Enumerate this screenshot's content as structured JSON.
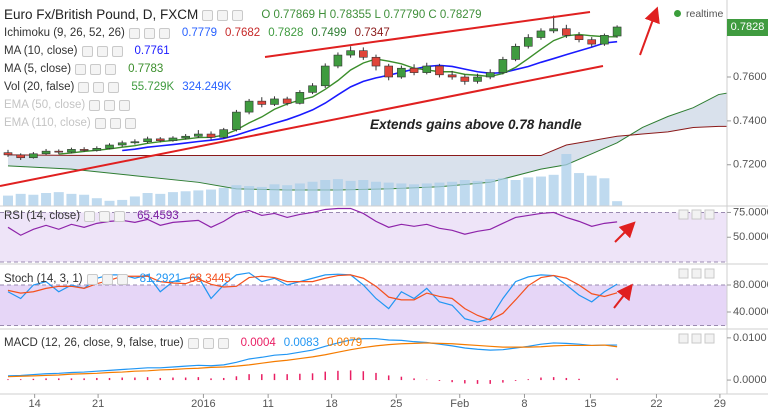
{
  "chart_data": [
    {
      "type": "candlestick",
      "title": "Euro Fx/British Pound, D, FXCM",
      "ohlc_legend": "O 0.77869 H 0.78355 L 0.77790 C 0.78279",
      "status": "realtime",
      "annotation": "Extends gains above 0.78 handle",
      "open": [
        0.7255,
        0.7245,
        0.7232,
        0.725,
        0.7262,
        0.7258,
        0.727,
        0.7265,
        0.7275,
        0.729,
        0.73,
        0.7305,
        0.7318,
        0.731,
        0.7322,
        0.733,
        0.734,
        0.7325,
        0.736,
        0.744,
        0.749,
        0.7475,
        0.75,
        0.748,
        0.753,
        0.756,
        0.765,
        0.77,
        0.772,
        0.769,
        0.765,
        0.76,
        0.764,
        0.762,
        0.765,
        0.761,
        0.76,
        0.758,
        0.76,
        0.762,
        0.768,
        0.774,
        0.778,
        0.781,
        0.782,
        0.779,
        0.777,
        0.775,
        0.77869
      ],
      "high": [
        0.7268,
        0.7252,
        0.7258,
        0.7272,
        0.727,
        0.7278,
        0.728,
        0.7284,
        0.7298,
        0.731,
        0.7316,
        0.7328,
        0.7326,
        0.733,
        0.734,
        0.7358,
        0.7352,
        0.7368,
        0.745,
        0.75,
        0.7508,
        0.7512,
        0.751,
        0.754,
        0.7572,
        0.7662,
        0.7712,
        0.774,
        0.7735,
        0.7702,
        0.766,
        0.7652,
        0.7658,
        0.7665,
        0.766,
        0.7628,
        0.7612,
        0.7615,
        0.7635,
        0.7692,
        0.7752,
        0.7795,
        0.7822,
        0.788,
        0.7838,
        0.7805,
        0.7782,
        0.7798,
        0.78355
      ],
      "low": [
        0.7236,
        0.7222,
        0.7228,
        0.7245,
        0.7248,
        0.7252,
        0.7258,
        0.726,
        0.727,
        0.7282,
        0.7292,
        0.7298,
        0.7302,
        0.7305,
        0.7315,
        0.7322,
        0.7315,
        0.732,
        0.7352,
        0.743,
        0.7462,
        0.7468,
        0.747,
        0.7475,
        0.7522,
        0.755,
        0.764,
        0.7688,
        0.7678,
        0.763,
        0.7585,
        0.7592,
        0.7608,
        0.7612,
        0.7598,
        0.7588,
        0.7565,
        0.757,
        0.759,
        0.7612,
        0.7672,
        0.773,
        0.777,
        0.78,
        0.7778,
        0.7758,
        0.7738,
        0.7742,
        0.7779
      ],
      "close": [
        0.7245,
        0.7232,
        0.725,
        0.7262,
        0.7258,
        0.727,
        0.7265,
        0.7275,
        0.729,
        0.73,
        0.7305,
        0.7318,
        0.731,
        0.7322,
        0.733,
        0.734,
        0.7325,
        0.736,
        0.744,
        0.749,
        0.7475,
        0.75,
        0.748,
        0.753,
        0.756,
        0.765,
        0.77,
        0.772,
        0.769,
        0.765,
        0.76,
        0.764,
        0.762,
        0.765,
        0.761,
        0.76,
        0.758,
        0.76,
        0.762,
        0.768,
        0.774,
        0.778,
        0.781,
        0.782,
        0.779,
        0.777,
        0.775,
        0.779,
        0.78279
      ],
      "up_color": "#3f9b3f",
      "down_color": "#e0443a",
      "ylim": [
        0.7012,
        0.7951
      ],
      "yticks": [
        {
          "value": 0.72,
          "label": "0.7200"
        },
        {
          "value": 0.74,
          "label": "0.7400"
        },
        {
          "value": 0.76,
          "label": "0.7600"
        },
        {
          "value": 0.78,
          "label": "0.7800"
        }
      ],
      "last_price": {
        "value": 0.78279,
        "label": "0.7828"
      },
      "indicators": [
        {
          "name": "Ichimoku (9, 26, 52, 26)",
          "values": [
            "0.7779",
            "0.7682",
            "0.7828",
            "0.7499",
            "0.7347"
          ],
          "colors": [
            "#2962ff",
            "#c62828",
            "#3f9b3f",
            "#2e7d32",
            "#8b1a1a"
          ]
        },
        {
          "name": "MA (10, close)",
          "values": [
            "0.7761"
          ],
          "colors": [
            "#1a1aff"
          ]
        },
        {
          "name": "MA (5, close)",
          "values": [
            "0.7783"
          ],
          "colors": [
            "#3b8e2b"
          ]
        },
        {
          "name": "Vol (20, false)",
          "values": [
            "55.729K",
            "324.249K"
          ],
          "colors": [
            "#3f9b3f",
            "#2962ff"
          ]
        },
        {
          "name": "EMA (50, close)",
          "values": [],
          "colors": [],
          "hidden": true
        },
        {
          "name": "EMA (110, close)",
          "values": [],
          "colors": [],
          "hidden": true
        }
      ],
      "ichimoku": {
        "x": [
          0,
          5,
          10,
          15,
          18,
          22,
          26,
          30,
          34,
          38,
          42,
          44,
          46,
          48,
          50,
          52,
          54,
          56,
          58,
          59.3
        ],
        "span_a": [
          0.7195,
          0.718,
          0.715,
          0.712,
          0.709,
          0.7085,
          0.7085,
          0.709,
          0.71,
          0.712,
          0.718,
          0.72,
          0.725,
          0.73,
          0.737,
          0.742,
          0.746,
          0.752,
          0.754,
          0.755
        ],
        "span_b": [
          0.7245,
          0.7243,
          0.7242,
          0.7242,
          0.7242,
          0.7242,
          0.7242,
          0.7242,
          0.7242,
          0.7242,
          0.7242,
          0.729,
          0.731,
          0.733,
          0.734,
          0.735,
          0.737,
          0.7375,
          0.7375,
          0.7375
        ],
        "color_a": "#2e7d32",
        "color_b": "#8b1a1a",
        "fill": "#b9c8dc"
      },
      "ma10": {
        "color": "#1a1aff",
        "values": [
          null,
          null,
          null,
          null,
          null,
          null,
          null,
          null,
          null,
          0.7265,
          0.7271,
          0.728,
          0.7286,
          0.7292,
          0.7299,
          0.7306,
          0.7312,
          0.732,
          0.7335,
          0.7354,
          0.7371,
          0.7389,
          0.7406,
          0.7427,
          0.745,
          0.7481,
          0.7519,
          0.7555,
          0.758,
          0.7596,
          0.7608,
          0.7622,
          0.7636,
          0.7648,
          0.7653,
          0.7648,
          0.7636,
          0.7624,
          0.7617,
          0.762,
          0.7634,
          0.7648,
          0.7667,
          0.7684,
          0.7702,
          0.7719,
          0.7736,
          0.7755,
          0.7761
        ]
      },
      "ma5": {
        "color": "#3b8e2b",
        "values": [
          null,
          null,
          null,
          null,
          0.7249,
          0.7254,
          0.7261,
          0.7266,
          0.7272,
          0.728,
          0.7287,
          0.7298,
          0.7305,
          0.7311,
          0.7317,
          0.7324,
          0.7325,
          0.7335,
          0.7359,
          0.7391,
          0.7418,
          0.7453,
          0.7477,
          0.7495,
          0.7509,
          0.7544,
          0.7584,
          0.7632,
          0.7664,
          0.7682,
          0.7672,
          0.766,
          0.764,
          0.7632,
          0.7624,
          0.7624,
          0.7612,
          0.7608,
          0.7602,
          0.7616,
          0.7644,
          0.7684,
          0.7726,
          0.7766,
          0.7788,
          0.7794,
          0.7788,
          0.7784,
          0.7783
        ]
      },
      "volume": {
        "color": "#a9cdea",
        "values": [
          120,
          140,
          130,
          150,
          160,
          140,
          130,
          90,
          60,
          70,
          110,
          150,
          140,
          160,
          170,
          180,
          190,
          210,
          240,
          230,
          220,
          250,
          240,
          260,
          280,
          300,
          310,
          290,
          300,
          280,
          270,
          260,
          250,
          260,
          270,
          280,
          300,
          290,
          310,
          320,
          300,
          330,
          340,
          360,
          600,
          380,
          350,
          320,
          55.729
        ]
      }
    },
    {
      "type": "line",
      "title": "RSI (14, close)",
      "legend_values": [
        "65.4593"
      ],
      "legend_colors": [
        "#7b1fa2"
      ],
      "ylim": [
        23,
        81.5
      ],
      "yticks": [
        {
          "value": 50,
          "label": "50.0000"
        },
        {
          "value": 75,
          "label": "75.0000"
        }
      ],
      "band": [
        25,
        75
      ],
      "band_color": "#eee4f8",
      "series": [
        {
          "color": "#8e24aa",
          "values": [
            60,
            52,
            58,
            62,
            58,
            63,
            60,
            64,
            66,
            67,
            65,
            68,
            62,
            65,
            66,
            67,
            60,
            66,
            74,
            77,
            72,
            74,
            70,
            73,
            75,
            78,
            79,
            79,
            74,
            66,
            60,
            63,
            61,
            63,
            59,
            57,
            53,
            56,
            58,
            64,
            70,
            72,
            74,
            75,
            70,
            66,
            61,
            64,
            65.4593
          ]
        }
      ]
    },
    {
      "type": "line",
      "title": "Stoch (14, 3, 1)",
      "legend_values": [
        "81.2921",
        "68.3445"
      ],
      "legend_colors": [
        "#2196f3",
        "#f4511e"
      ],
      "ylim": [
        14.8,
        111.1
      ],
      "yticks": [
        {
          "value": 40,
          "label": "40.0000"
        },
        {
          "value": 80,
          "label": "80.0000"
        }
      ],
      "band": [
        20,
        80
      ],
      "band_color": "#e6d6f7",
      "series": [
        {
          "color": "#2196f3",
          "values": [
            70,
            60,
            80,
            85,
            70,
            80,
            75,
            90,
            95,
            95,
            90,
            95,
            70,
            85,
            90,
            92,
            60,
            80,
            95,
            98,
            85,
            90,
            80,
            85,
            90,
            95,
            96,
            95,
            80,
            60,
            45,
            70,
            60,
            75,
            55,
            50,
            30,
            25,
            30,
            60,
            85,
            92,
            95,
            94,
            80,
            65,
            55,
            70,
            81.2921
          ]
        },
        {
          "color": "#f4511e",
          "values": [
            72,
            68,
            70,
            75,
            78,
            78,
            75,
            82,
            87,
            93,
            93,
            93,
            85,
            83,
            82,
            89,
            81,
            77,
            78,
            91,
            93,
            91,
            85,
            85,
            85,
            90,
            94,
            95,
            90,
            78,
            62,
            58,
            58,
            68,
            63,
            60,
            45,
            35,
            28,
            38,
            58,
            79,
            91,
            94,
            90,
            80,
            67,
            63,
            68.3445
          ]
        }
      ]
    },
    {
      "type": "line",
      "title": "MACD (12, 26, close, 9, false, true)",
      "legend_values": [
        "0.0004",
        "0.0083",
        "0.0079"
      ],
      "legend_colors": [
        "#e91e63",
        "#2196f3",
        "#f57c00"
      ],
      "ylim": [
        -0.0033,
        0.0121
      ],
      "yticks": [
        {
          "value": 0,
          "label": "0.0000"
        },
        {
          "value": 0.01,
          "label": "0.0100"
        }
      ],
      "histogram": {
        "color": "#e91e63",
        "values": [
          0.0002,
          0.0002,
          0.0003,
          0.0004,
          0.0004,
          0.0004,
          0.0004,
          0.0005,
          0.0005,
          0.0006,
          0.0006,
          0.0007,
          0.0005,
          0.0006,
          0.0006,
          0.0007,
          0.0004,
          0.0005,
          0.0009,
          0.0014,
          0.0014,
          0.0015,
          0.0014,
          0.0015,
          0.0016,
          0.002,
          0.0022,
          0.0023,
          0.0021,
          0.0017,
          0.0011,
          0.0008,
          0.0004,
          0.0001,
          -0.0002,
          -0.0005,
          -0.0008,
          -0.0009,
          -0.0009,
          -0.0006,
          -0.0002,
          0.0002,
          0.0006,
          0.0007,
          0.0005,
          0.0003,
          0,
          0,
          0.0004
        ]
      },
      "series": [
        {
          "color": "#2196f3",
          "values": [
            0.001,
            0.0011,
            0.0013,
            0.0015,
            0.0016,
            0.0018,
            0.0019,
            0.0021,
            0.0023,
            0.0025,
            0.0027,
            0.0029,
            0.0029,
            0.0031,
            0.0033,
            0.0035,
            0.0034,
            0.0036,
            0.0042,
            0.005,
            0.0054,
            0.0059,
            0.0061,
            0.0066,
            0.0071,
            0.008,
            0.0088,
            0.0095,
            0.0098,
            0.0098,
            0.0095,
            0.0094,
            0.0091,
            0.0089,
            0.0085,
            0.0081,
            0.0076,
            0.0073,
            0.0071,
            0.0072,
            0.0076,
            0.008,
            0.0085,
            0.0088,
            0.0087,
            0.0085,
            0.0082,
            0.0083,
            0.0083
          ]
        },
        {
          "color": "#f57c00",
          "values": [
            0.0008,
            0.0009,
            0.001,
            0.0011,
            0.0012,
            0.0014,
            0.0015,
            0.0016,
            0.0018,
            0.0019,
            0.0021,
            0.0022,
            0.0024,
            0.0025,
            0.0027,
            0.0028,
            0.003,
            0.0031,
            0.0033,
            0.0036,
            0.004,
            0.0044,
            0.0047,
            0.0051,
            0.0055,
            0.006,
            0.0066,
            0.0072,
            0.0077,
            0.0081,
            0.0084,
            0.0086,
            0.0087,
            0.0088,
            0.0087,
            0.0086,
            0.0084,
            0.0082,
            0.008,
            0.0078,
            0.0078,
            0.0078,
            0.0079,
            0.0081,
            0.0082,
            0.0082,
            0.0082,
            0.0083,
            0.0079
          ]
        }
      ],
      "xlim": [
        -0.63,
        56.66
      ],
      "xticks": [
        {
          "value": 2.1,
          "label": "14"
        },
        {
          "value": 7.1,
          "label": "21"
        },
        {
          "value": 15.4,
          "label": "2016"
        },
        {
          "value": 20.5,
          "label": "11"
        },
        {
          "value": 25.5,
          "label": "18"
        },
        {
          "value": 30.6,
          "label": "25"
        },
        {
          "value": 35.6,
          "label": "Feb"
        },
        {
          "value": 40.7,
          "label": "8"
        },
        {
          "value": 45.9,
          "label": "15"
        },
        {
          "value": 51.1,
          "label": "22"
        },
        {
          "value": 56.1,
          "label": "29"
        }
      ]
    }
  ]
}
